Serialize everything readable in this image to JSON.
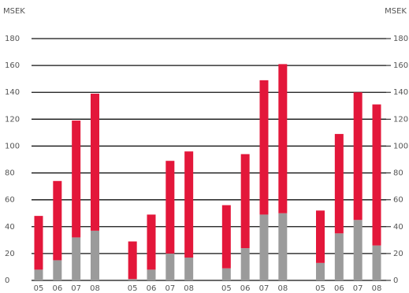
{
  "chart_data": {
    "type": "stacked-bar",
    "y_label": "MSEK",
    "y2_label": "MSEK",
    "categories": [
      "05",
      "06",
      "07",
      "08",
      null,
      "05",
      "06",
      "07",
      "08",
      null,
      "05",
      "06",
      "07",
      "08",
      null,
      "05",
      "06",
      "07",
      "08"
    ],
    "series": [
      {
        "color": "#9b9b9b",
        "values": [
          8,
          15,
          32,
          37,
          null,
          1,
          8,
          20,
          17,
          null,
          9,
          24,
          49,
          50,
          null,
          13,
          35,
          45,
          26
        ]
      },
      {
        "color": "#e3173a",
        "values": [
          40,
          59,
          87,
          102,
          null,
          28,
          41,
          69,
          79,
          null,
          47,
          70,
          100,
          111,
          null,
          39,
          74,
          95,
          105
        ]
      }
    ],
    "ylim": [
      0,
      180
    ],
    "yticks": [
      0,
      20,
      40,
      60,
      80,
      100,
      120,
      140,
      160,
      180
    ],
    "y2lim": [
      0,
      180
    ],
    "y2ticks": [
      0,
      20,
      40,
      60,
      80,
      100,
      120,
      140,
      160,
      180
    ],
    "grid": true
  }
}
